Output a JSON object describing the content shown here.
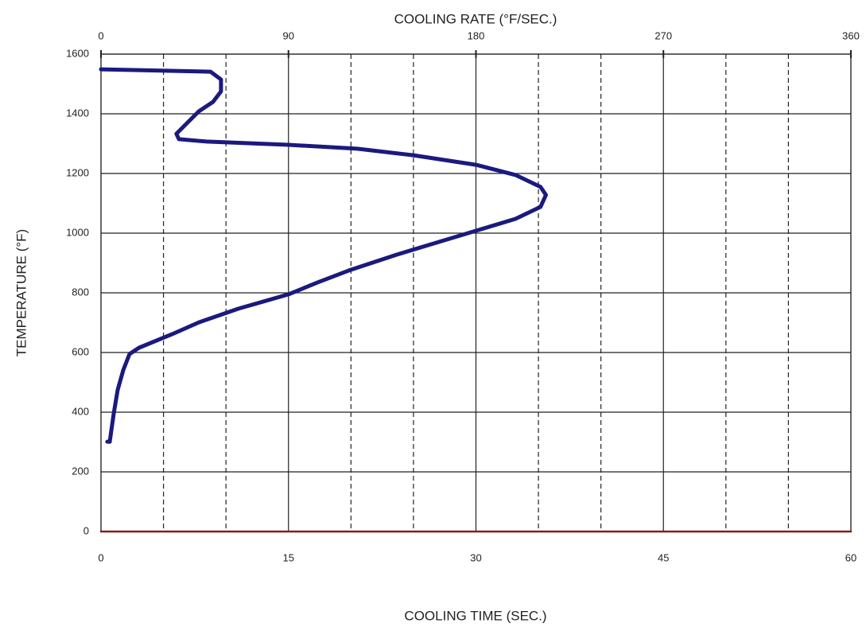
{
  "chart_data": {
    "type": "line",
    "xlabel": "COOLING TIME (SEC.)",
    "x2label": "COOLING RATE (°F/SEC.)",
    "ylabel": "TEMPERATURE (°F)",
    "xlim": [
      0,
      60
    ],
    "xticks": [
      0,
      15,
      30,
      45,
      60
    ],
    "xminor": [
      5,
      10,
      20,
      25,
      35,
      40,
      50,
      55
    ],
    "x2lim": [
      0,
      360
    ],
    "x2ticks": [
      0,
      90,
      180,
      270,
      360
    ],
    "ylim": [
      0,
      1600
    ],
    "yticks": [
      0,
      200,
      400,
      600,
      800,
      1000,
      1200,
      1400,
      1600
    ],
    "grid": true,
    "series": [
      {
        "color": "#1a1a7e",
        "axis": "x2",
        "x": [
          0,
          52.6,
          57.6,
          57.6,
          53.8,
          46.9,
          41.2,
          36.2,
          37.4,
          50.7,
          90,
          123,
          150,
          180,
          199,
          211,
          213.6,
          211,
          199,
          180,
          161,
          142,
          119,
          104,
          90,
          66,
          47,
          34,
          18.3,
          13.7,
          10.7,
          8,
          6.1,
          4.2,
          3
        ],
        "values": [
          1549,
          1541,
          1515,
          1475,
          1440,
          1408,
          1368,
          1333,
          1315,
          1307,
          1296,
          1283,
          1261,
          1229,
          1195,
          1155,
          1128,
          1088,
          1048,
          1008,
          968,
          928,
          875,
          835,
          795,
          747,
          701,
          661,
          616,
          595,
          541,
          475,
          395,
          301,
          301
        ]
      },
      {
        "color": "#8b1a1a",
        "x": [
          0,
          60
        ],
        "values": [
          0,
          0
        ]
      }
    ]
  }
}
